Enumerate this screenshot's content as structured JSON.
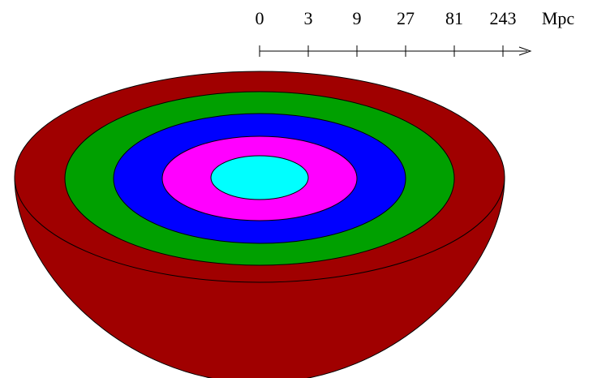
{
  "scale": {
    "ticks": [
      "0",
      "3",
      "9",
      "27",
      "81",
      "243"
    ],
    "unit": "Mpc"
  }
}
